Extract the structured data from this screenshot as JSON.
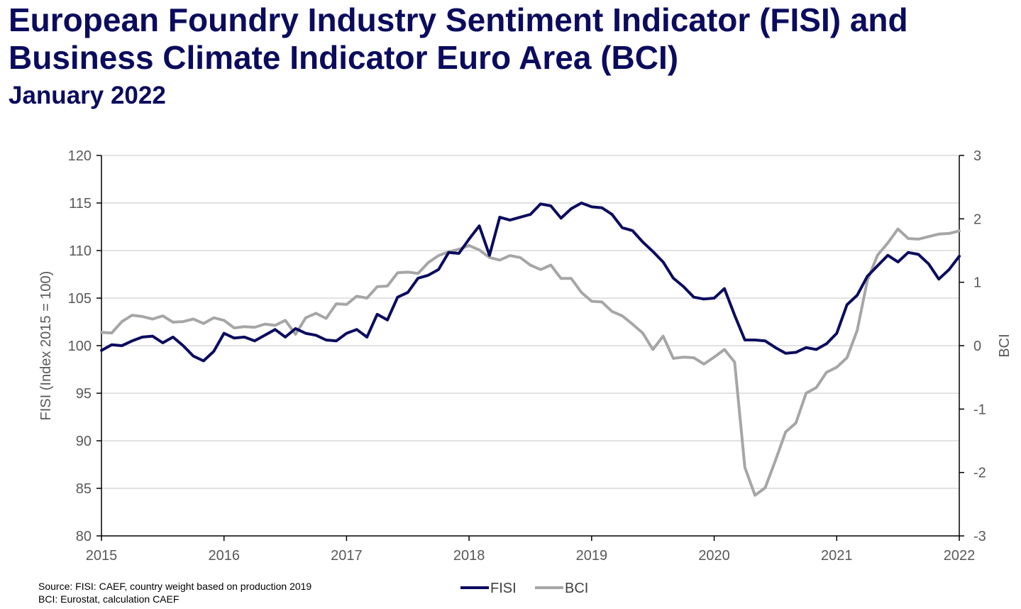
{
  "title_line1": "European Foundry Industry Sentiment Indicator (FISI) and",
  "title_line2": "Business Climate Indicator Euro Area (BCI)",
  "subtitle": "January 2022",
  "source_line1": "Source: FISI: CAEF, country weight based on production 2019",
  "source_line2": "BCI: Eurostat, calculation CAEF",
  "colors": {
    "fisi": "#0b0b5e",
    "bci": "#a6a6a6",
    "grid": "#d9d9d9",
    "axis": "#595959"
  },
  "chart_data": {
    "type": "line",
    "x_start": "2015-01",
    "x_end": "2022-01",
    "x_ticks": [
      "2015",
      "2016",
      "2017",
      "2018",
      "2019",
      "2020",
      "2021",
      "2022"
    ],
    "ylabel": "FISI (Index 2015 = 100)",
    "y2label": "BCI",
    "ylim": [
      80,
      120
    ],
    "y2lim": [
      -3,
      3
    ],
    "y_ticks": [
      "80",
      "85",
      "90",
      "95",
      "100",
      "105",
      "110",
      "115",
      "120"
    ],
    "y2_ticks": [
      "-3",
      "-2",
      "-1",
      "0",
      "1",
      "2",
      "3"
    ],
    "grid": true,
    "legend_position": "bottom",
    "series": [
      {
        "name": "FISI",
        "axis": "left",
        "values": [
          99.5,
          100.1,
          100.0,
          100.5,
          100.9,
          101.0,
          100.3,
          100.9,
          100.0,
          98.9,
          98.4,
          99.4,
          101.3,
          100.8,
          100.9,
          100.5,
          101.1,
          101.7,
          100.9,
          101.8,
          101.3,
          101.1,
          100.6,
          100.5,
          101.3,
          101.7,
          100.9,
          103.3,
          102.7,
          105.1,
          105.6,
          107.1,
          107.4,
          108.0,
          109.8,
          109.7,
          111.2,
          112.6,
          109.5,
          113.5,
          113.2,
          113.5,
          113.8,
          114.9,
          114.7,
          113.4,
          114.4,
          115.0,
          114.6,
          114.5,
          113.8,
          112.4,
          112.1,
          110.9,
          109.9,
          108.8,
          107.1,
          106.2,
          105.1,
          104.9,
          105.0,
          106.0,
          103.2,
          100.6,
          100.6,
          100.5,
          99.8,
          99.2,
          99.3,
          99.8,
          99.6,
          100.2,
          101.3,
          104.3,
          105.3,
          107.3,
          108.4,
          109.5,
          108.8,
          109.8,
          109.6,
          108.6,
          107.0,
          108.0,
          109.4
        ]
      },
      {
        "name": "BCI",
        "axis": "right",
        "values": [
          0.21,
          0.2,
          0.38,
          0.48,
          0.46,
          0.42,
          0.47,
          0.37,
          0.38,
          0.42,
          0.35,
          0.44,
          0.4,
          0.28,
          0.3,
          0.29,
          0.34,
          0.32,
          0.4,
          0.18,
          0.44,
          0.51,
          0.43,
          0.66,
          0.65,
          0.78,
          0.75,
          0.93,
          0.94,
          1.15,
          1.16,
          1.14,
          1.31,
          1.42,
          1.48,
          1.52,
          1.58,
          1.51,
          1.39,
          1.35,
          1.42,
          1.39,
          1.27,
          1.2,
          1.27,
          1.06,
          1.06,
          0.84,
          0.7,
          0.69,
          0.54,
          0.47,
          0.34,
          0.2,
          -0.06,
          0.15,
          -0.2,
          -0.18,
          -0.19,
          -0.29,
          -0.18,
          -0.06,
          -0.26,
          -1.92,
          -2.36,
          -2.24,
          -1.81,
          -1.36,
          -1.22,
          -0.75,
          -0.66,
          -0.42,
          -0.34,
          -0.19,
          0.24,
          1.03,
          1.43,
          1.62,
          1.84,
          1.69,
          1.68,
          1.72,
          1.76,
          1.77,
          1.81
        ]
      }
    ]
  }
}
